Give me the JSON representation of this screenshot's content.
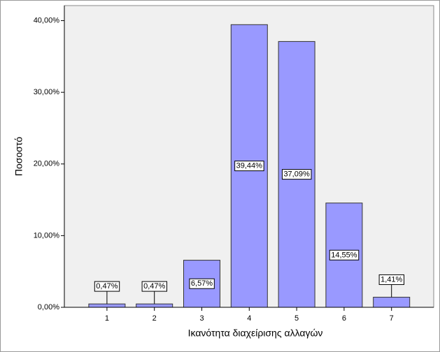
{
  "chart_data": {
    "type": "bar",
    "x_label": "Ικανότητα διαχείρισης αλλαγών",
    "y_label": "Ποσοστό",
    "categories": [
      "1",
      "2",
      "3",
      "4",
      "5",
      "6",
      "7"
    ],
    "values": [
      0.47,
      0.47,
      6.57,
      39.44,
      37.09,
      14.55,
      1.41
    ],
    "value_labels": [
      "0,47%",
      "0,47%",
      "6,57%",
      "39,44%",
      "37,09%",
      "14,55%",
      "1,41%"
    ],
    "color": "#9999ff",
    "ylim": [
      0,
      42.1
    ],
    "yticks": [
      {
        "value": 0,
        "label": "0,00%"
      },
      {
        "value": 10,
        "label": "10,00%"
      },
      {
        "value": 20,
        "label": "20,00%"
      },
      {
        "value": 30,
        "label": "30,00%"
      },
      {
        "value": 40,
        "label": "40,00%"
      }
    ]
  }
}
